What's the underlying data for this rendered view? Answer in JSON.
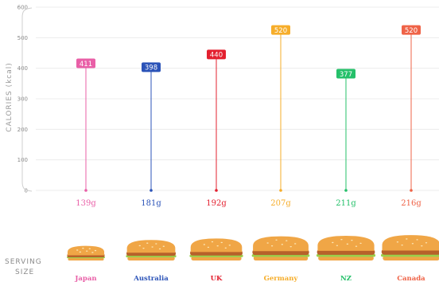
{
  "chart_data": {
    "type": "lollipop",
    "ylabel": "CALORIES (kcal)",
    "xlabel": "SERVING SIZE",
    "ylim": [
      0,
      600
    ],
    "yticks": [
      0,
      100,
      200,
      300,
      400,
      500,
      600
    ],
    "grid": true,
    "categories": [
      "Japan",
      "Australia",
      "UK",
      "Germany",
      "NZ",
      "Canada"
    ],
    "values": [
      411,
      398,
      440,
      520,
      377,
      520
    ],
    "serving_sizes": [
      "139g",
      "181g",
      "192g",
      "207g",
      "211g",
      "216g"
    ],
    "serving_grams": [
      139,
      181,
      192,
      207,
      211,
      216
    ],
    "colors": [
      "#e95fa7",
      "#2b53b8",
      "#e3202f",
      "#f6ad2a",
      "#25c06a",
      "#ef6347"
    ]
  },
  "labels": {
    "ylabel_line1": "CALORIES (kcal)",
    "xlabel_line1": "SERVING",
    "xlabel_line2": "SIZE"
  }
}
